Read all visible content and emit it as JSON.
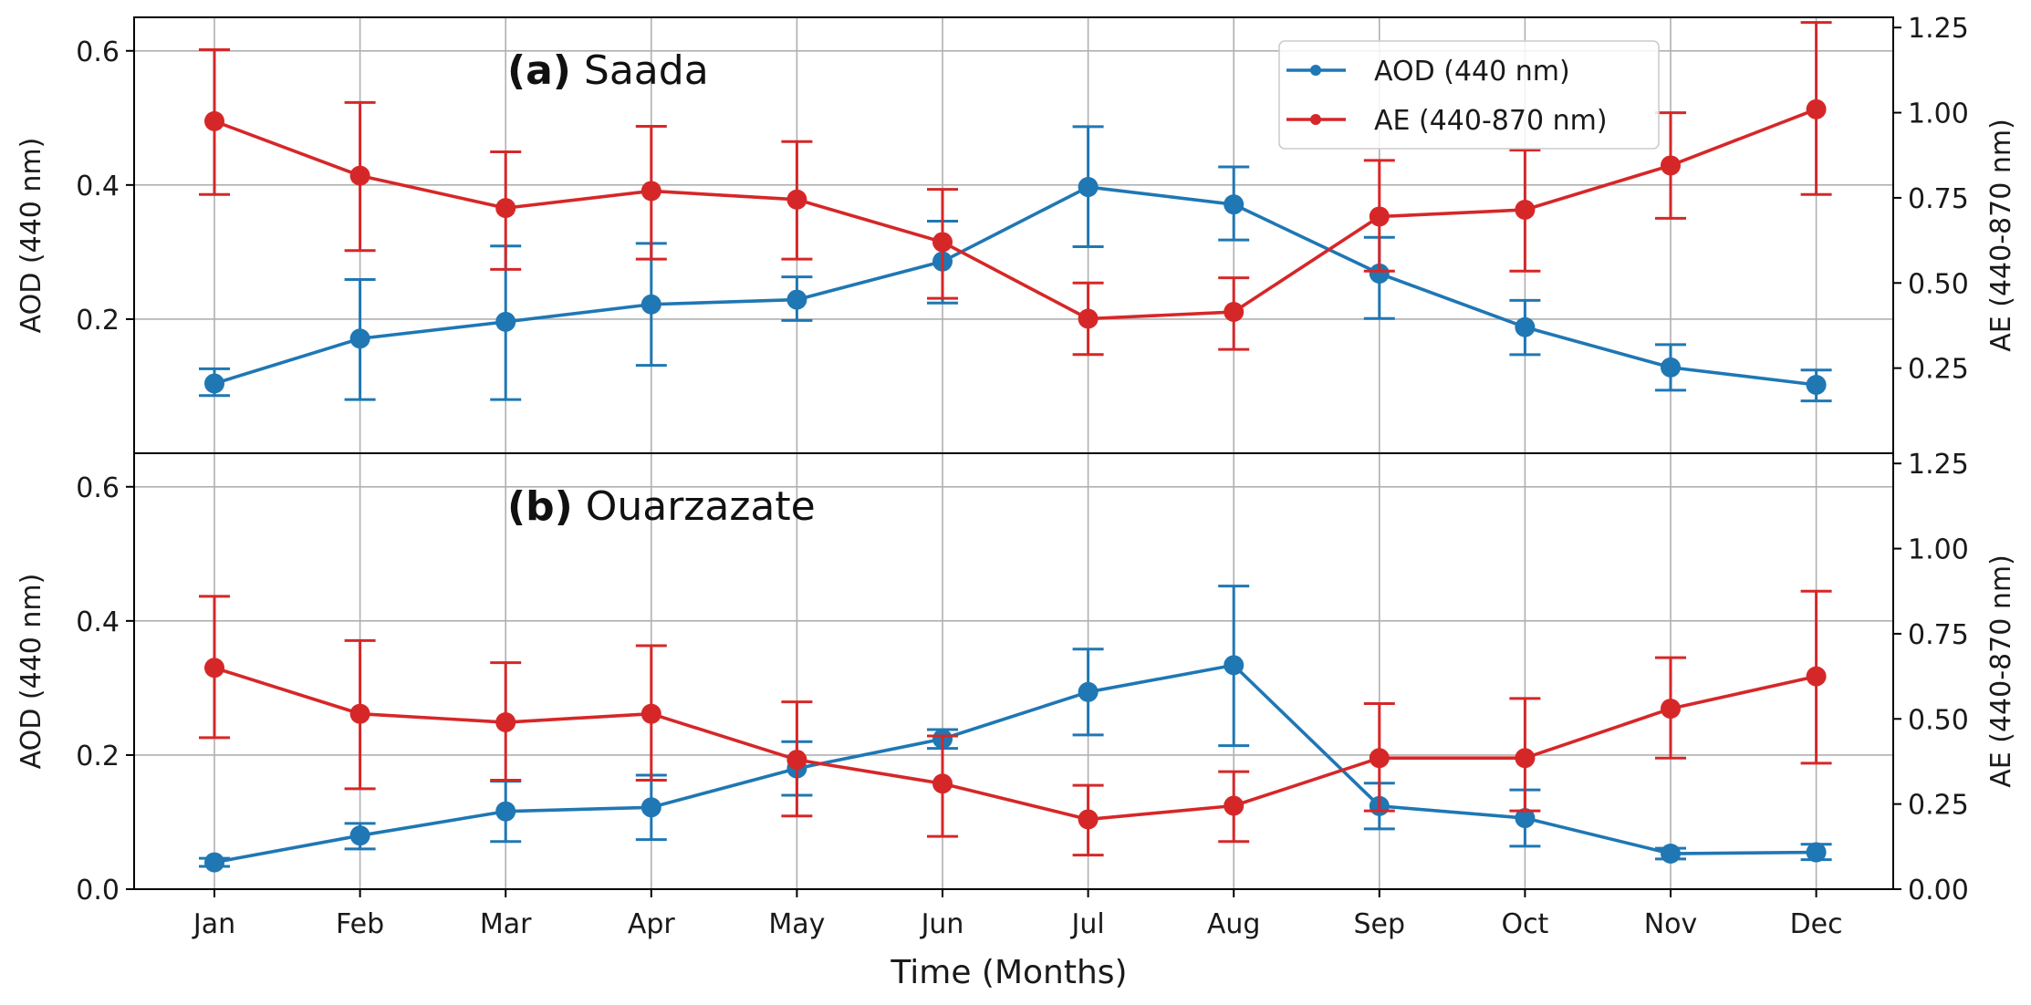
{
  "colors": {
    "aod": "#1f77b4",
    "ae": "#d62728"
  },
  "xlabel": "Time (Months)",
  "chart_data": [
    {
      "type": "line",
      "panel_label": "(a)",
      "site": "Saada",
      "title": "(a) Saada",
      "categories": [
        "Jan",
        "Feb",
        "Mar",
        "Apr",
        "May",
        "Jun",
        "Jul",
        "Aug",
        "Sep",
        "Oct",
        "Nov",
        "Dec"
      ],
      "ylabel_left": "AOD (440 nm)",
      "ylabel_right": "AE (440-870 nm)",
      "ylim_left": [
        0.0,
        0.65
      ],
      "ylim_right": [
        0.0,
        1.28
      ],
      "yticks_left": [
        "0.2",
        "0.4",
        "0.6"
      ],
      "yticks_right": [
        "0.25",
        "0.50",
        "0.75",
        "1.00",
        "1.25"
      ],
      "legend": [
        "AOD (440 nm)",
        "AE (440-870 nm)"
      ],
      "legend_position": "top-right",
      "series": [
        {
          "name": "AOD (440 nm)",
          "axis": "left",
          "color": "#1f77b4",
          "values": [
            0.104,
            0.171,
            0.196,
            0.222,
            0.229,
            0.286,
            0.397,
            0.371,
            0.268,
            0.188,
            0.128,
            0.102
          ],
          "err_low": [
            0.086,
            0.08,
            0.08,
            0.131,
            0.198,
            0.224,
            0.308,
            0.318,
            0.201,
            0.147,
            0.094,
            0.078
          ],
          "err_high": [
            0.126,
            0.259,
            0.309,
            0.313,
            0.263,
            0.346,
            0.487,
            0.427,
            0.322,
            0.228,
            0.162,
            0.124
          ]
        },
        {
          "name": "AE (440-870 nm)",
          "axis": "right",
          "color": "#d62728",
          "values": [
            0.975,
            0.815,
            0.72,
            0.77,
            0.745,
            0.62,
            0.395,
            0.415,
            0.695,
            0.715,
            0.845,
            1.01
          ],
          "err_low": [
            0.76,
            0.595,
            0.54,
            0.57,
            0.57,
            0.455,
            0.29,
            0.305,
            0.535,
            0.535,
            0.69,
            0.76
          ],
          "err_high": [
            1.185,
            1.03,
            0.885,
            0.96,
            0.915,
            0.775,
            0.5,
            0.515,
            0.86,
            0.89,
            1.0,
            1.265
          ]
        }
      ]
    },
    {
      "type": "line",
      "panel_label": "(b)",
      "site": "Ouarzazate",
      "title": "(b) Ouarzazate",
      "categories": [
        "Jan",
        "Feb",
        "Mar",
        "Apr",
        "May",
        "Jun",
        "Jul",
        "Aug",
        "Sep",
        "Oct",
        "Nov",
        "Dec"
      ],
      "ylabel_left": "AOD (440 nm)",
      "ylabel_right": "AE (440-870 nm)",
      "ylim_left": [
        0.0,
        0.65
      ],
      "ylim_right": [
        0.0,
        1.28
      ],
      "yticks_left": [
        "0.0",
        "0.2",
        "0.4",
        "0.6"
      ],
      "yticks_right": [
        "0.00",
        "0.25",
        "0.50",
        "0.75",
        "1.00",
        "1.25"
      ],
      "series": [
        {
          "name": "AOD (440 nm)",
          "axis": "left",
          "color": "#1f77b4",
          "values": [
            0.04,
            0.08,
            0.116,
            0.122,
            0.18,
            0.224,
            0.294,
            0.334,
            0.124,
            0.106,
            0.053,
            0.055
          ],
          "err_low": [
            0.034,
            0.06,
            0.071,
            0.074,
            0.14,
            0.21,
            0.23,
            0.214,
            0.09,
            0.064,
            0.045,
            0.044
          ],
          "err_high": [
            0.046,
            0.098,
            0.161,
            0.17,
            0.22,
            0.238,
            0.358,
            0.452,
            0.158,
            0.148,
            0.061,
            0.067
          ]
        },
        {
          "name": "AE (440-870 nm)",
          "axis": "right",
          "color": "#d62728",
          "values": [
            0.65,
            0.515,
            0.49,
            0.515,
            0.38,
            0.31,
            0.205,
            0.245,
            0.385,
            0.385,
            0.53,
            0.625
          ],
          "err_low": [
            0.445,
            0.295,
            0.32,
            0.32,
            0.215,
            0.155,
            0.1,
            0.14,
            0.23,
            0.23,
            0.385,
            0.37
          ],
          "err_high": [
            0.86,
            0.73,
            0.665,
            0.715,
            0.55,
            0.45,
            0.305,
            0.345,
            0.545,
            0.56,
            0.68,
            0.875
          ]
        }
      ]
    }
  ]
}
